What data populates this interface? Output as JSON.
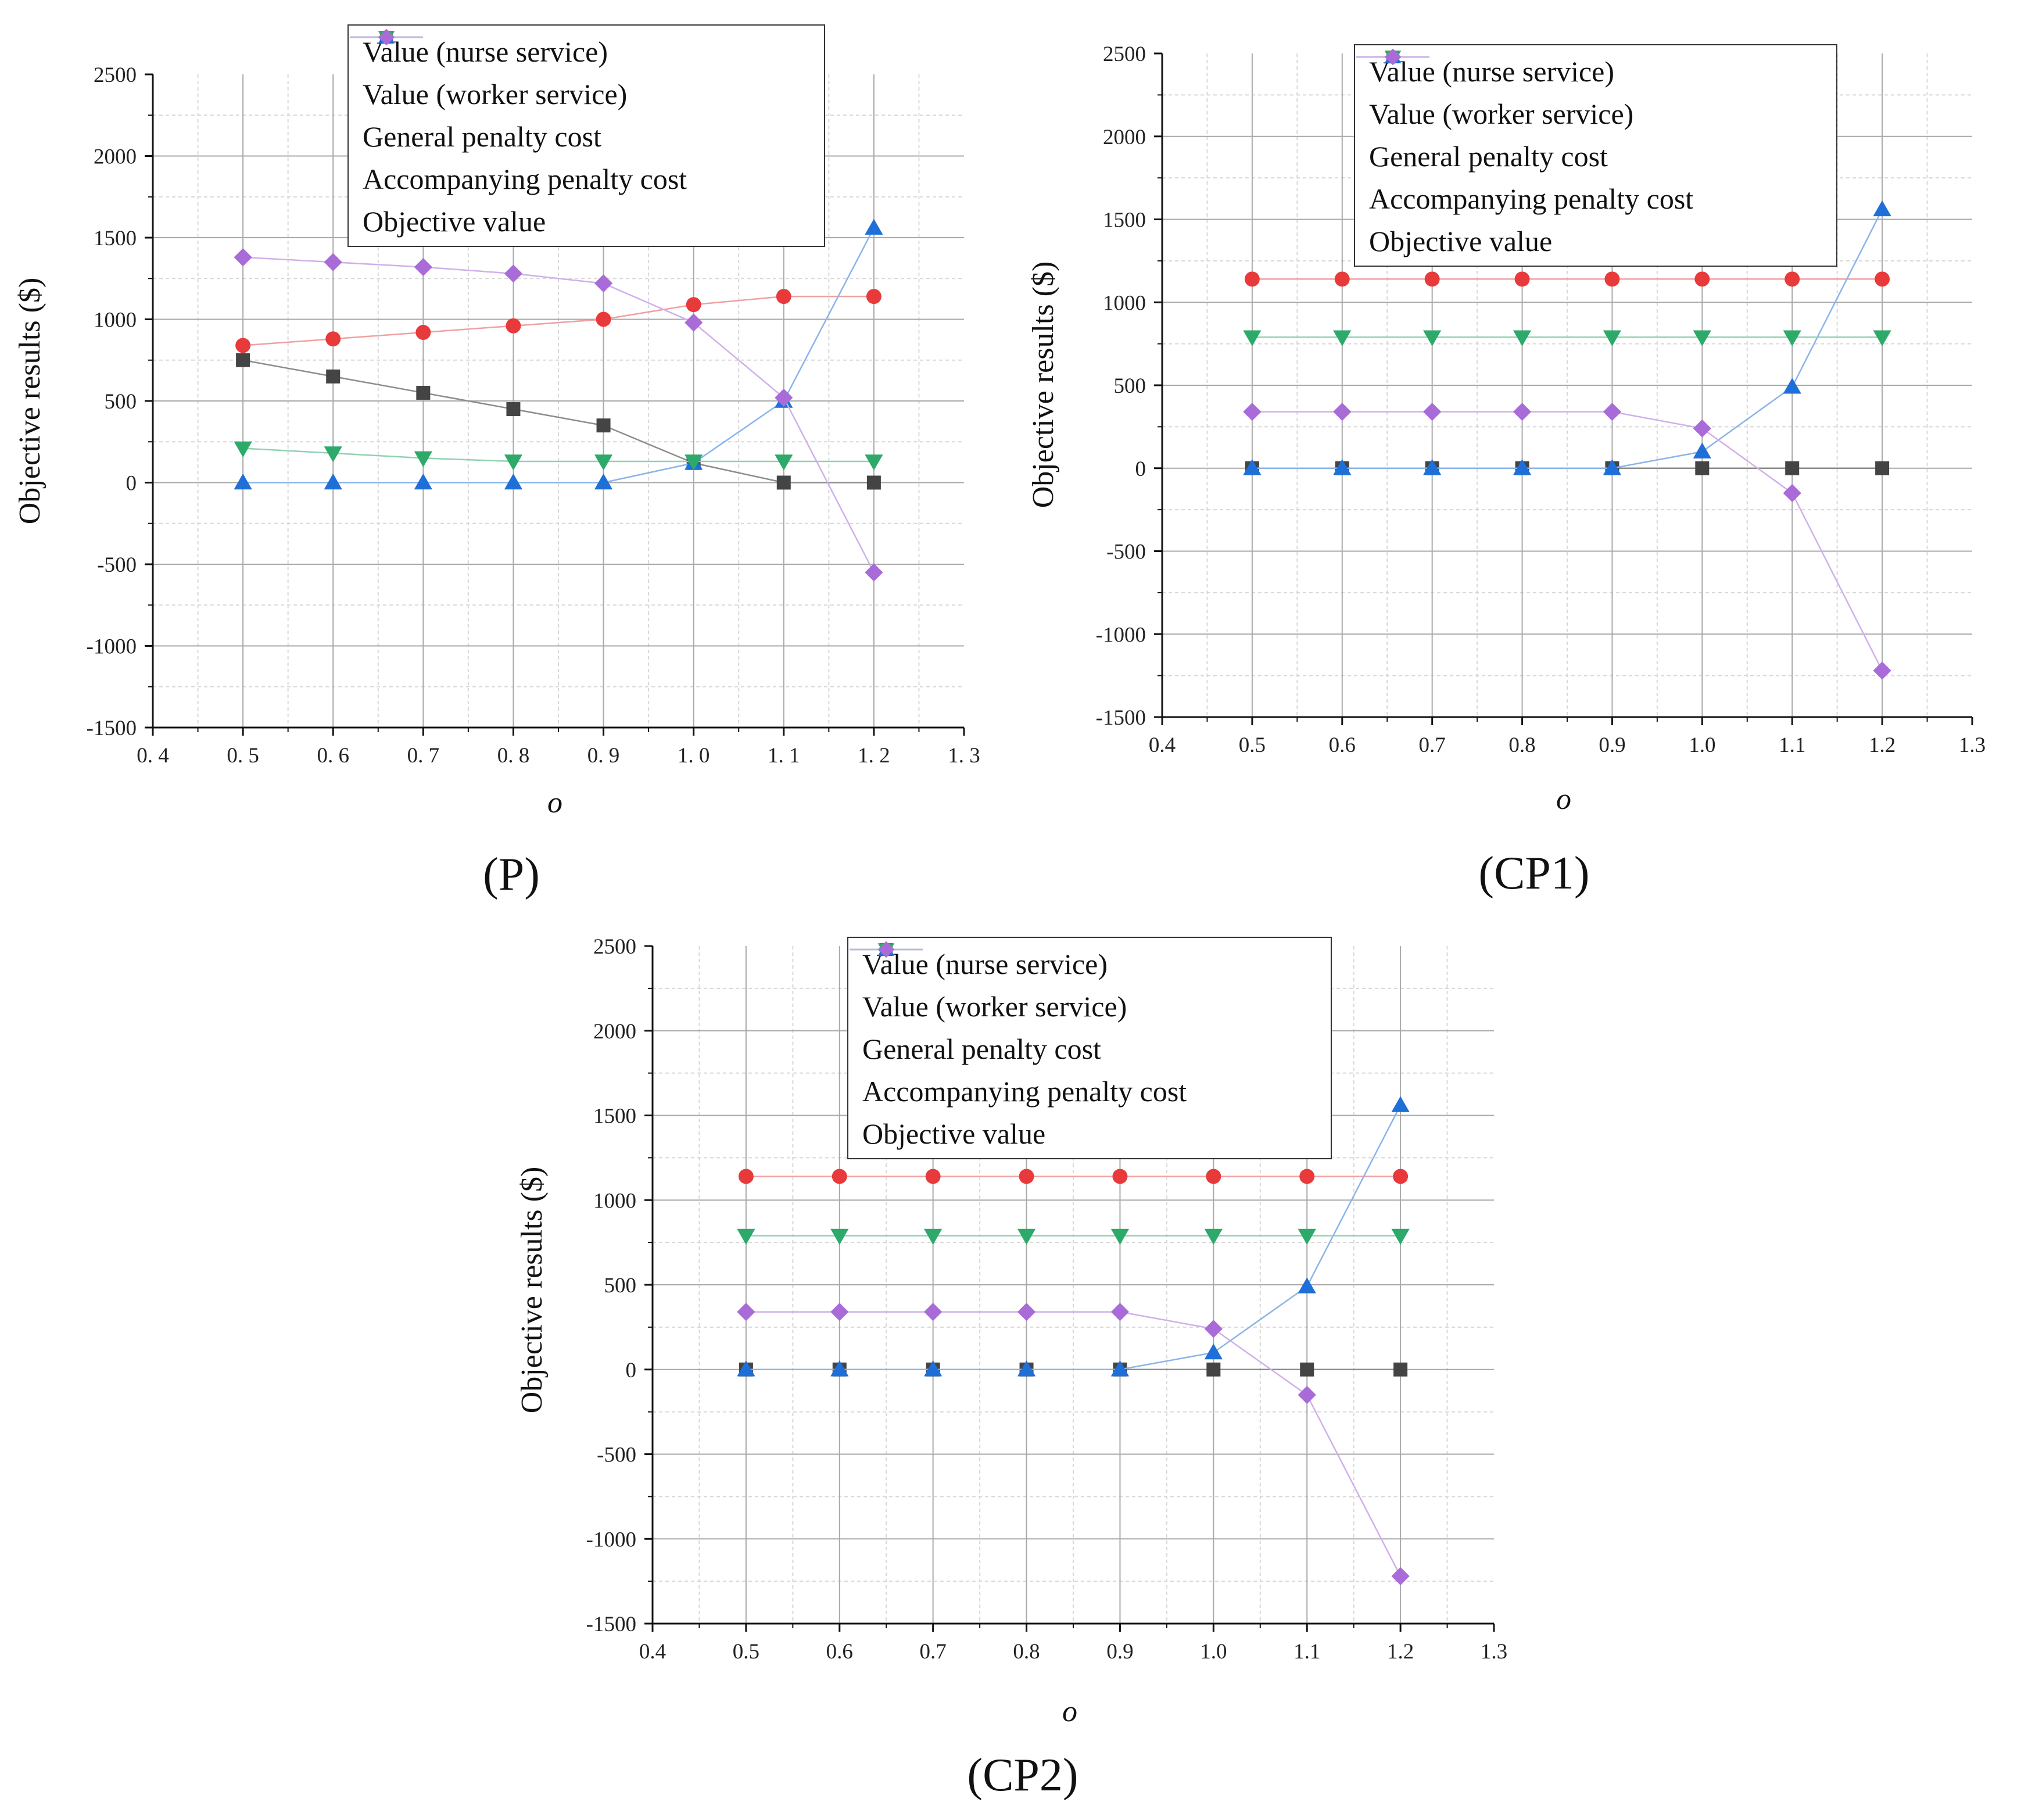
{
  "legend_labels": {
    "nurse": "Value (nurse service)",
    "worker": "Value (worker service)",
    "general": "General penalty cost",
    "accompany": "Accompanying penalty cost",
    "objective": "Objective value"
  },
  "series_colors": {
    "nurse": "#444444",
    "worker": "#e83a3a",
    "general": "#1f6fd8",
    "accompany": "#2daa6a",
    "objective": "#a96bd8"
  },
  "line_colors": {
    "nurse": "#8c8c8c",
    "worker": "#f0a0a0",
    "general": "#8ab4ea",
    "accompany": "#90d2b2",
    "objective": "#cfb0ea"
  },
  "series_markers": {
    "nurse": "square",
    "worker": "circle",
    "general": "triangle-up",
    "accompany": "triangle-down",
    "objective": "diamond"
  },
  "panels": [
    {
      "id": "P",
      "caption": "(P)"
    },
    {
      "id": "CP1",
      "caption": "(CP1)"
    },
    {
      "id": "CP2",
      "caption": "(CP2)"
    }
  ],
  "chart_data": [
    {
      "type": "line",
      "panel": "P",
      "title": "(P)",
      "xlabel": "o",
      "ylabel": "Objective results ($)",
      "x": [
        0.5,
        0.6,
        0.7,
        0.8,
        0.9,
        1.0,
        1.1,
        1.2
      ],
      "xlim": [
        0.4,
        1.3
      ],
      "ylim": [
        -1500,
        2500
      ],
      "xticks": [
        "0. 4",
        "0. 5",
        "0. 6",
        "0. 7",
        "0. 8",
        "0. 9",
        "1. 0",
        "1. 1",
        "1. 2",
        "1. 3"
      ],
      "yticks": [
        "-1500",
        "-1000",
        "-500",
        "0",
        "500",
        "1000",
        "1500",
        "2000",
        "2500"
      ],
      "grid": true,
      "legend_position": "top-center",
      "series": [
        {
          "key": "nurse",
          "name": "Value (nurse service)",
          "values": [
            750,
            650,
            550,
            450,
            350,
            120,
            0,
            0
          ]
        },
        {
          "key": "worker",
          "name": "Value (worker service)",
          "values": [
            840,
            880,
            920,
            960,
            1000,
            1090,
            1140,
            1140
          ]
        },
        {
          "key": "general",
          "name": "General penalty cost",
          "values": [
            0,
            0,
            0,
            0,
            0,
            120,
            500,
            1560
          ]
        },
        {
          "key": "accompany",
          "name": "Accompanying penalty cost",
          "values": [
            210,
            180,
            150,
            130,
            130,
            130,
            130,
            130
          ]
        },
        {
          "key": "objective",
          "name": "Objective value",
          "values": [
            1380,
            1350,
            1320,
            1280,
            1220,
            980,
            520,
            -550
          ]
        }
      ]
    },
    {
      "type": "line",
      "panel": "CP1",
      "title": "(CP1)",
      "xlabel": "o",
      "ylabel": "Objective results ($)",
      "x": [
        0.5,
        0.6,
        0.7,
        0.8,
        0.9,
        1.0,
        1.1,
        1.2
      ],
      "xlim": [
        0.4,
        1.3
      ],
      "ylim": [
        -1500,
        2500
      ],
      "xticks": [
        "0.4",
        "0.5",
        "0.6",
        "0.7",
        "0.8",
        "0.9",
        "1.0",
        "1.1",
        "1.2",
        "1.3"
      ],
      "yticks": [
        "-1500",
        "-1000",
        "-500",
        "0",
        "500",
        "1000",
        "1500",
        "2000",
        "2500"
      ],
      "grid": true,
      "legend_position": "top-center",
      "series": [
        {
          "key": "nurse",
          "name": "Value (nurse service)",
          "values": [
            0,
            0,
            0,
            0,
            0,
            0,
            0,
            0
          ]
        },
        {
          "key": "worker",
          "name": "Value (worker service)",
          "values": [
            1140,
            1140,
            1140,
            1140,
            1140,
            1140,
            1140,
            1140
          ]
        },
        {
          "key": "general",
          "name": "General penalty cost",
          "values": [
            0,
            0,
            0,
            0,
            0,
            100,
            490,
            1560
          ]
        },
        {
          "key": "accompany",
          "name": "Accompanying penalty cost",
          "values": [
            790,
            790,
            790,
            790,
            790,
            790,
            790,
            790
          ]
        },
        {
          "key": "objective",
          "name": "Objective value",
          "values": [
            340,
            340,
            340,
            340,
            340,
            240,
            -150,
            -1220
          ]
        }
      ]
    },
    {
      "type": "line",
      "panel": "CP2",
      "title": "(CP2)",
      "xlabel": "o",
      "ylabel": "Objective results ($)",
      "x": [
        0.5,
        0.6,
        0.7,
        0.8,
        0.9,
        1.0,
        1.1,
        1.2
      ],
      "xlim": [
        0.4,
        1.3
      ],
      "ylim": [
        -1500,
        2500
      ],
      "xticks": [
        "0.4",
        "0.5",
        "0.6",
        "0.7",
        "0.8",
        "0.9",
        "1.0",
        "1.1",
        "1.2",
        "1.3"
      ],
      "yticks": [
        "-1500",
        "-1000",
        "-500",
        "0",
        "500",
        "1000",
        "1500",
        "2000",
        "2500"
      ],
      "grid": true,
      "legend_position": "top-center",
      "series": [
        {
          "key": "nurse",
          "name": "Value (nurse service)",
          "values": [
            0,
            0,
            0,
            0,
            0,
            0,
            0,
            0
          ]
        },
        {
          "key": "worker",
          "name": "Value (worker service)",
          "values": [
            1140,
            1140,
            1140,
            1140,
            1140,
            1140,
            1140,
            1140
          ]
        },
        {
          "key": "general",
          "name": "General penalty cost",
          "values": [
            0,
            0,
            0,
            0,
            0,
            100,
            490,
            1560
          ]
        },
        {
          "key": "accompany",
          "name": "Accompanying penalty cost",
          "values": [
            790,
            790,
            790,
            790,
            790,
            790,
            790,
            790
          ]
        },
        {
          "key": "objective",
          "name": "Objective value",
          "values": [
            340,
            340,
            340,
            340,
            340,
            240,
            -150,
            -1220
          ]
        }
      ]
    }
  ]
}
